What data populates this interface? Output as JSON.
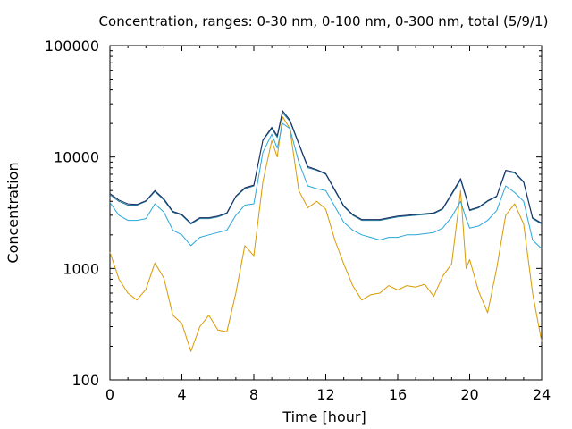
{
  "chart_data": {
    "type": "line",
    "title": "Concentration, ranges: 0-30 nm, 0-100 nm, 0-300 nm, total (5/9/1)",
    "xlabel": "Time [hour]",
    "ylabel": "Concentration",
    "xlim": [
      0,
      24
    ],
    "ylim": [
      100,
      100000
    ],
    "yscale": "log",
    "x_ticks": [
      0,
      4,
      8,
      12,
      16,
      20,
      24
    ],
    "x_tick_labels": [
      "0",
      "4",
      "8",
      "12",
      "16",
      "20",
      "24"
    ],
    "y_ticks": [
      100,
      1000,
      10000,
      100000
    ],
    "y_tick_labels": [
      "100",
      "1000",
      "10000",
      "100000"
    ],
    "grid": false,
    "legend": "none",
    "series": [
      {
        "color": "#d99a00",
        "x": [
          0,
          0.5,
          1,
          1.5,
          2,
          2.5,
          3,
          3.5,
          4,
          4.5,
          5,
          5.5,
          6,
          6.5,
          7,
          7.5,
          8,
          8.5,
          9,
          9.3,
          9.6,
          10,
          10.5,
          11,
          11.5,
          12,
          12.5,
          13,
          13.5,
          14,
          14.5,
          15,
          15.5,
          16,
          16.5,
          17,
          17.5,
          18,
          18.5,
          19,
          19.5,
          19.8,
          20,
          20.5,
          21,
          21.5,
          22,
          22.5,
          23,
          23.5,
          24
        ],
        "values": [
          1400,
          800,
          600,
          520,
          650,
          1120,
          820,
          380,
          320,
          180,
          300,
          380,
          280,
          270,
          600,
          1600,
          1300,
          6000,
          14000,
          10000,
          23000,
          18000,
          5000,
          3500,
          4000,
          3400,
          1800,
          1100,
          700,
          520,
          580,
          600,
          700,
          640,
          700,
          680,
          720,
          560,
          850,
          1100,
          5000,
          1000,
          1200,
          620,
          400,
          1000,
          3000,
          3800,
          2500,
          600,
          220
        ]
      },
      {
        "color": "#2aa7d9",
        "x": [
          0,
          0.5,
          1,
          1.5,
          2,
          2.5,
          3,
          3.5,
          4,
          4.5,
          5,
          5.5,
          6,
          6.5,
          7,
          7.5,
          8,
          8.5,
          9,
          9.3,
          9.6,
          10,
          10.5,
          11,
          11.5,
          12,
          12.5,
          13,
          13.5,
          14,
          14.5,
          15,
          15.5,
          16,
          16.5,
          17,
          17.5,
          18,
          18.5,
          19,
          19.5,
          19.8,
          20,
          20.5,
          21,
          21.5,
          22,
          22.5,
          23,
          23.5,
          24
        ],
        "values": [
          3900,
          3000,
          2700,
          2700,
          2800,
          3800,
          3200,
          2200,
          2000,
          1600,
          1900,
          2000,
          2100,
          2200,
          3000,
          3700,
          3800,
          11000,
          16000,
          12000,
          20000,
          18000,
          9000,
          5500,
          5200,
          5000,
          3600,
          2600,
          2200,
          2000,
          1900,
          1800,
          1900,
          1900,
          2000,
          2000,
          2050,
          2100,
          2300,
          2900,
          4000,
          2800,
          2300,
          2400,
          2700,
          3300,
          5500,
          4800,
          4000,
          1800,
          1500
        ]
      },
      {
        "color": "#1a7a9a",
        "x": [
          0,
          0.5,
          1,
          1.5,
          2,
          2.5,
          3,
          3.5,
          4,
          4.5,
          5,
          5.5,
          6,
          6.5,
          7,
          7.5,
          8,
          8.5,
          9,
          9.3,
          9.6,
          10,
          10.5,
          11,
          11.5,
          12,
          12.5,
          13,
          13.5,
          14,
          14.5,
          15,
          15.5,
          16,
          16.5,
          17,
          17.5,
          18,
          18.5,
          19,
          19.5,
          19.8,
          20,
          20.5,
          21,
          21.5,
          22,
          22.5,
          23,
          23.5,
          24
        ],
        "values": [
          4600,
          4000,
          3700,
          3700,
          4000,
          4900,
          4100,
          3200,
          3000,
          2500,
          2800,
          2800,
          2900,
          3100,
          4400,
          5200,
          5500,
          14000,
          18000,
          15000,
          25000,
          21000,
          13000,
          8000,
          7600,
          7000,
          5000,
          3600,
          3000,
          2700,
          2700,
          2700,
          2800,
          2900,
          2950,
          3000,
          3050,
          3100,
          3400,
          4600,
          6200,
          4300,
          3300,
          3500,
          4000,
          4400,
          7400,
          7200,
          5900,
          2800,
          2500
        ]
      },
      {
        "color": "#1c2a60",
        "x": [
          0,
          0.5,
          1,
          1.5,
          2,
          2.5,
          3,
          3.5,
          4,
          4.5,
          5,
          5.5,
          6,
          6.5,
          7,
          7.5,
          8,
          8.5,
          9,
          9.3,
          9.6,
          10,
          10.5,
          11,
          11.5,
          12,
          12.5,
          13,
          13.5,
          14,
          14.5,
          15,
          15.5,
          16,
          16.5,
          17,
          17.5,
          18,
          18.5,
          19,
          19.5,
          19.8,
          20,
          20.5,
          21,
          21.5,
          22,
          22.5,
          23,
          23.5,
          24
        ],
        "values": [
          4700,
          4100,
          3800,
          3750,
          4050,
          5000,
          4200,
          3250,
          3050,
          2550,
          2850,
          2850,
          2950,
          3150,
          4450,
          5300,
          5600,
          14200,
          18500,
          15500,
          26000,
          21500,
          13200,
          8200,
          7700,
          7100,
          5100,
          3650,
          3050,
          2750,
          2750,
          2750,
          2850,
          2950,
          3000,
          3050,
          3100,
          3150,
          3450,
          4700,
          6400,
          4400,
          3350,
          3550,
          4050,
          4450,
          7600,
          7300,
          6000,
          2850,
          2550
        ]
      }
    ]
  }
}
